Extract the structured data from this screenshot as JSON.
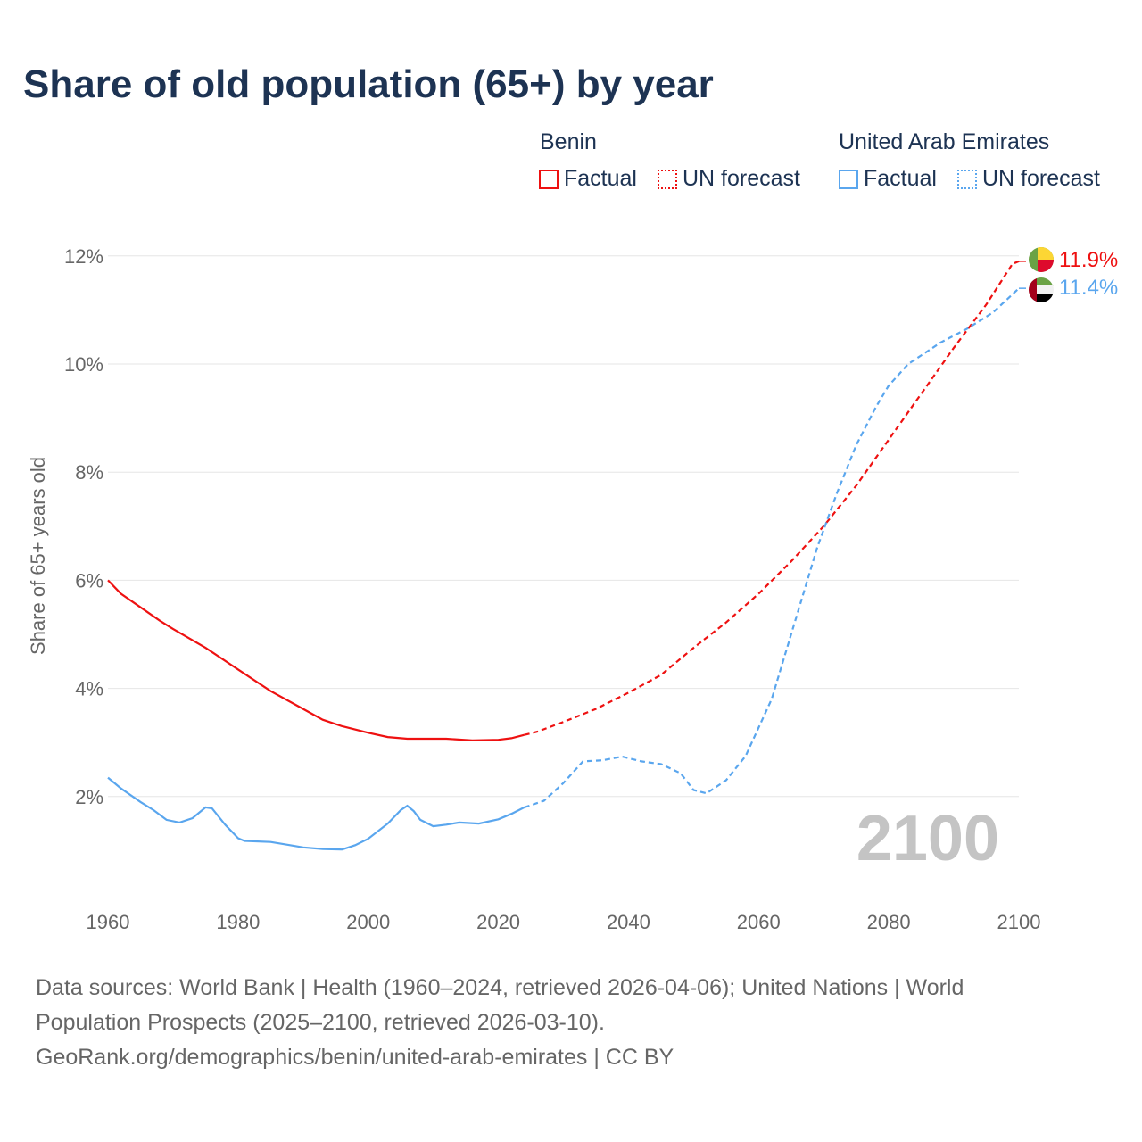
{
  "title": "Share of old population (65+) by year",
  "legend": {
    "groups": [
      {
        "name": "Benin",
        "color": "#ee1111",
        "factual": "Factual",
        "forecast": "UN forecast"
      },
      {
        "name": "United Arab Emirates",
        "color": "#5aa6ee",
        "factual": "Factual",
        "forecast": "UN forecast"
      }
    ]
  },
  "sources": [
    "Data sources: World Bank | Health (1960–2024, retrieved 2026-04-06); United Nations | World",
    "Population Prospects (2025–2100, retrieved 2026-03-10).",
    "GeoRank.org/demographics/benin/united-arab-emirates | CC BY"
  ],
  "chart_data": {
    "type": "line",
    "title": "Share of old population (65+) by year",
    "ylabel": "Share of 65+ years old",
    "xlim": [
      1960,
      2100
    ],
    "ylim": [
      0,
      12
    ],
    "xticks": [
      1960,
      1980,
      2000,
      2020,
      2040,
      2060,
      2080,
      2100
    ],
    "yticks": [
      2,
      4,
      6,
      8,
      10,
      12
    ],
    "ytick_labels": [
      "2%",
      "4%",
      "6%",
      "8%",
      "10%",
      "12%"
    ],
    "year_watermark": "2100",
    "series": [
      {
        "name": "Benin",
        "color": "#ee1111",
        "end_label": "11.9%",
        "factual": [
          [
            1960,
            6.0
          ],
          [
            1962,
            5.75
          ],
          [
            1965,
            5.5
          ],
          [
            1968,
            5.25
          ],
          [
            1970,
            5.1
          ],
          [
            1975,
            4.75
          ],
          [
            1980,
            4.35
          ],
          [
            1985,
            3.95
          ],
          [
            1990,
            3.62
          ],
          [
            1993,
            3.42
          ],
          [
            1996,
            3.3
          ],
          [
            2000,
            3.18
          ],
          [
            2003,
            3.1
          ],
          [
            2006,
            3.07
          ],
          [
            2012,
            3.07
          ],
          [
            2016,
            3.04
          ],
          [
            2020,
            3.05
          ],
          [
            2022,
            3.08
          ],
          [
            2024,
            3.14
          ]
        ],
        "forecast": [
          [
            2024,
            3.14
          ],
          [
            2026,
            3.2
          ],
          [
            2030,
            3.38
          ],
          [
            2035,
            3.62
          ],
          [
            2040,
            3.92
          ],
          [
            2045,
            4.25
          ],
          [
            2050,
            4.75
          ],
          [
            2055,
            5.22
          ],
          [
            2060,
            5.75
          ],
          [
            2065,
            6.35
          ],
          [
            2070,
            7.0
          ],
          [
            2075,
            7.75
          ],
          [
            2080,
            8.6
          ],
          [
            2085,
            9.45
          ],
          [
            2090,
            10.3
          ],
          [
            2095,
            11.1
          ],
          [
            2099,
            11.85
          ],
          [
            2100,
            11.9
          ]
        ]
      },
      {
        "name": "United Arab Emirates",
        "color": "#5aa6ee",
        "end_label": "11.4%",
        "factual": [
          [
            1960,
            2.35
          ],
          [
            1962,
            2.15
          ],
          [
            1965,
            1.9
          ],
          [
            1967,
            1.75
          ],
          [
            1969,
            1.57
          ],
          [
            1971,
            1.52
          ],
          [
            1973,
            1.6
          ],
          [
            1975,
            1.8
          ],
          [
            1976,
            1.78
          ],
          [
            1978,
            1.48
          ],
          [
            1980,
            1.23
          ],
          [
            1981,
            1.18
          ],
          [
            1985,
            1.16
          ],
          [
            1988,
            1.1
          ],
          [
            1990,
            1.06
          ],
          [
            1993,
            1.03
          ],
          [
            1996,
            1.02
          ],
          [
            1998,
            1.1
          ],
          [
            2000,
            1.22
          ],
          [
            2003,
            1.5
          ],
          [
            2005,
            1.75
          ],
          [
            2006,
            1.83
          ],
          [
            2007,
            1.73
          ],
          [
            2008,
            1.57
          ],
          [
            2010,
            1.45
          ],
          [
            2012,
            1.48
          ],
          [
            2014,
            1.52
          ],
          [
            2017,
            1.5
          ],
          [
            2020,
            1.58
          ],
          [
            2022,
            1.68
          ],
          [
            2024,
            1.8
          ]
        ],
        "forecast": [
          [
            2024,
            1.8
          ],
          [
            2027,
            1.92
          ],
          [
            2030,
            2.25
          ],
          [
            2033,
            2.65
          ],
          [
            2036,
            2.67
          ],
          [
            2039,
            2.74
          ],
          [
            2042,
            2.65
          ],
          [
            2045,
            2.6
          ],
          [
            2048,
            2.43
          ],
          [
            2050,
            2.12
          ],
          [
            2052,
            2.06
          ],
          [
            2055,
            2.3
          ],
          [
            2058,
            2.75
          ],
          [
            2062,
            3.8
          ],
          [
            2066,
            5.4
          ],
          [
            2069,
            6.6
          ],
          [
            2072,
            7.6
          ],
          [
            2075,
            8.5
          ],
          [
            2078,
            9.2
          ],
          [
            2080,
            9.6
          ],
          [
            2083,
            10.0
          ],
          [
            2088,
            10.4
          ],
          [
            2092,
            10.65
          ],
          [
            2096,
            10.95
          ],
          [
            2100,
            11.4
          ]
        ]
      }
    ]
  }
}
